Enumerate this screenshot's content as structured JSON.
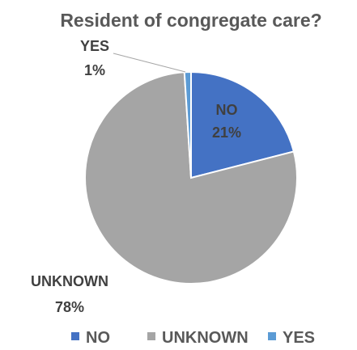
{
  "chart_data": {
    "type": "pie",
    "title": "Resident of congregate care?",
    "slices": [
      {
        "name": "NO",
        "value": 21,
        "label": "21%",
        "color": "#4472C4"
      },
      {
        "name": "UNKNOWN",
        "value": 78,
        "label": "78%",
        "color": "#A5A5A5"
      },
      {
        "name": "YES",
        "value": 1,
        "label": "1%",
        "color": "#5B9BD5"
      }
    ],
    "legend_position": "bottom"
  }
}
